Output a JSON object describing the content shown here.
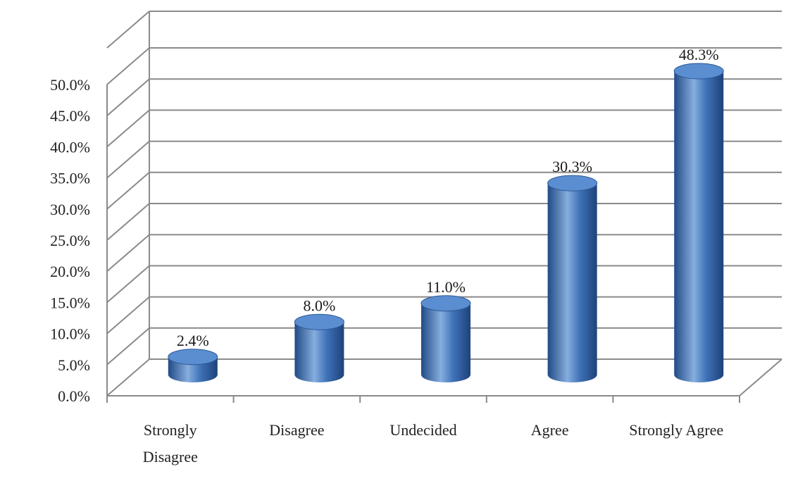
{
  "chart_data": {
    "type": "bar",
    "style": "3d-cylinder",
    "categories": [
      [
        "Strongly",
        "Disagree"
      ],
      [
        "Disagree"
      ],
      [
        "Undecided"
      ],
      [
        "Agree"
      ],
      [
        "Strongly Agree"
      ]
    ],
    "values": [
      2.4,
      8.0,
      11.0,
      30.3,
      48.3
    ],
    "data_labels": [
      "2.4%",
      "8.0%",
      "11.0%",
      "30.3%",
      "48.3%"
    ],
    "y_ticks": [
      "0.0%",
      "5.0%",
      "10.0%",
      "15.0%",
      "20.0%",
      "25.0%",
      "30.0%",
      "35.0%",
      "40.0%",
      "45.0%",
      "50.0%"
    ],
    "ylim": [
      0,
      50
    ],
    "title": "",
    "xlabel": "",
    "ylabel": "",
    "grid": true,
    "legend": "none",
    "colors": {
      "bar": "#3f72b8",
      "bar_dark": "#214a86",
      "bar_light": "#86aede",
      "top": "#5b8ed0",
      "grid": "#8a8a8a"
    }
  }
}
